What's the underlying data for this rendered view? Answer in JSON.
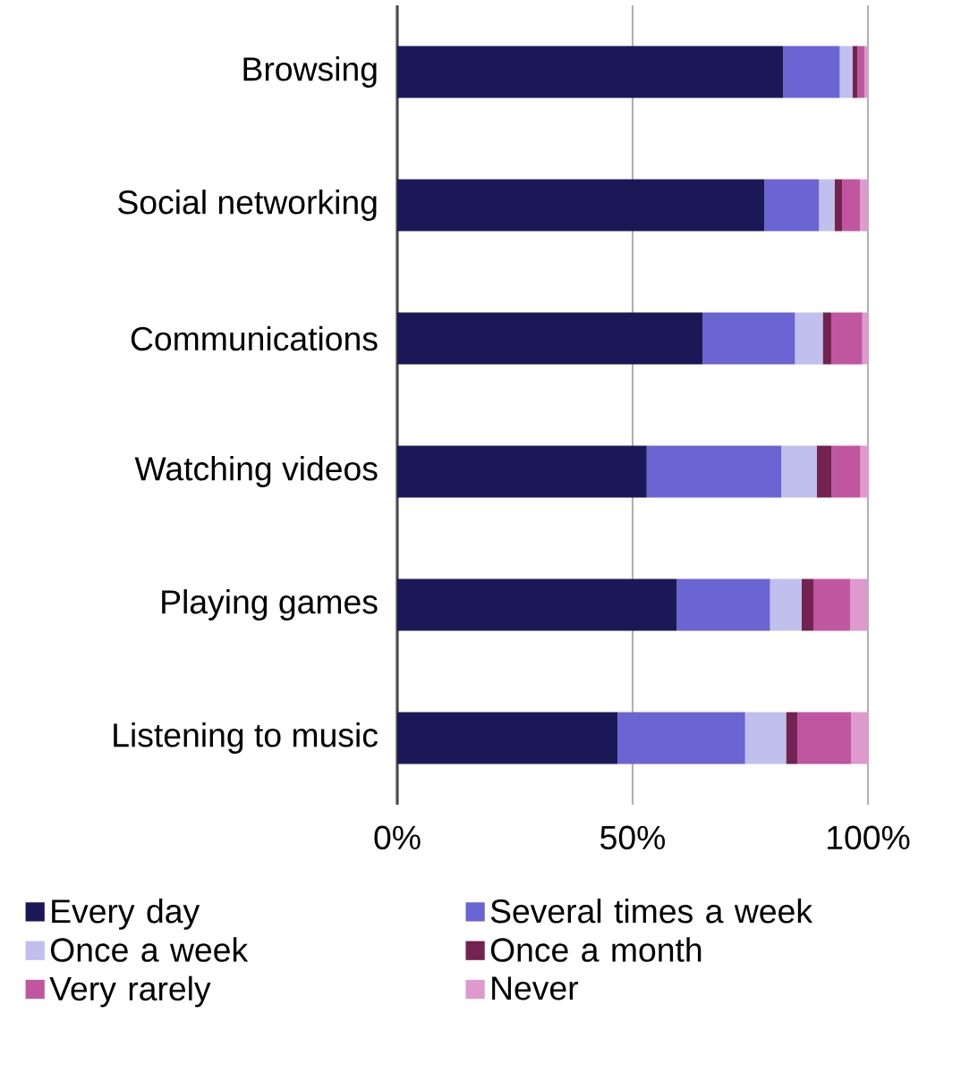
{
  "chart_data": {
    "type": "bar",
    "orientation": "horizontal",
    "stacked": true,
    "categories": [
      "Browsing",
      "Social networking",
      "Communications",
      "Watching videos",
      "Playing games",
      "Listening to music"
    ],
    "series": [
      {
        "name": "Every day",
        "color": "#1b1858",
        "values": [
          82.0,
          78.0,
          64.9,
          53.0,
          59.4,
          46.8
        ]
      },
      {
        "name": "Several times a week",
        "color": "#6a65d2",
        "values": [
          12.0,
          11.6,
          19.6,
          28.6,
          19.8,
          27.1
        ]
      },
      {
        "name": "Once a week",
        "color": "#c0bfee",
        "values": [
          2.7,
          3.3,
          5.9,
          7.5,
          6.7,
          8.7
        ]
      },
      {
        "name": "Once a month",
        "color": "#722350",
        "values": [
          1.1,
          1.6,
          1.8,
          3.2,
          2.5,
          2.4
        ]
      },
      {
        "name": "Very rarely",
        "color": "#c056a0",
        "values": [
          1.5,
          3.8,
          6.6,
          6.1,
          7.8,
          11.4
        ]
      },
      {
        "name": "Never",
        "color": "#de9acc",
        "values": [
          0.6,
          1.6,
          1.3,
          1.8,
          3.7,
          3.7
        ]
      }
    ],
    "xlim": [
      0,
      100
    ],
    "xticks": [
      {
        "value": 0,
        "label": "0%"
      },
      {
        "value": 50,
        "label": "50%"
      },
      {
        "value": 100,
        "label": "100%"
      }
    ],
    "grid": "x",
    "legend": "bottom"
  }
}
